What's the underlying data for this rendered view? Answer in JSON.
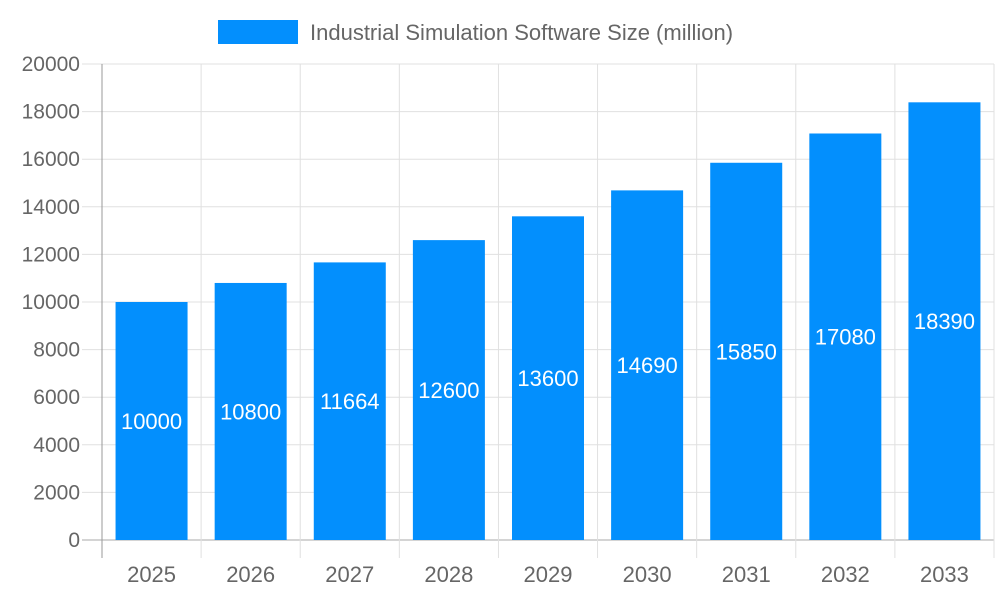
{
  "chart_data": {
    "type": "bar",
    "title": "",
    "xlabel": "",
    "ylabel": "",
    "categories": [
      "2025",
      "2026",
      "2027",
      "2028",
      "2029",
      "2030",
      "2031",
      "2032",
      "2033"
    ],
    "series": [
      {
        "name": "Industrial Simulation Software Size (million)",
        "values": [
          10000,
          10800,
          11664,
          12600,
          13600,
          14690,
          15850,
          17080,
          18390
        ],
        "color": "#038ffd"
      }
    ],
    "ylim": [
      0,
      20000
    ],
    "yticks": [
      0,
      2000,
      4000,
      6000,
      8000,
      10000,
      12000,
      14000,
      16000,
      18000,
      20000
    ],
    "grid": true,
    "legend_position": "top",
    "data_labels": true,
    "data_label_color": "#ffffff"
  }
}
